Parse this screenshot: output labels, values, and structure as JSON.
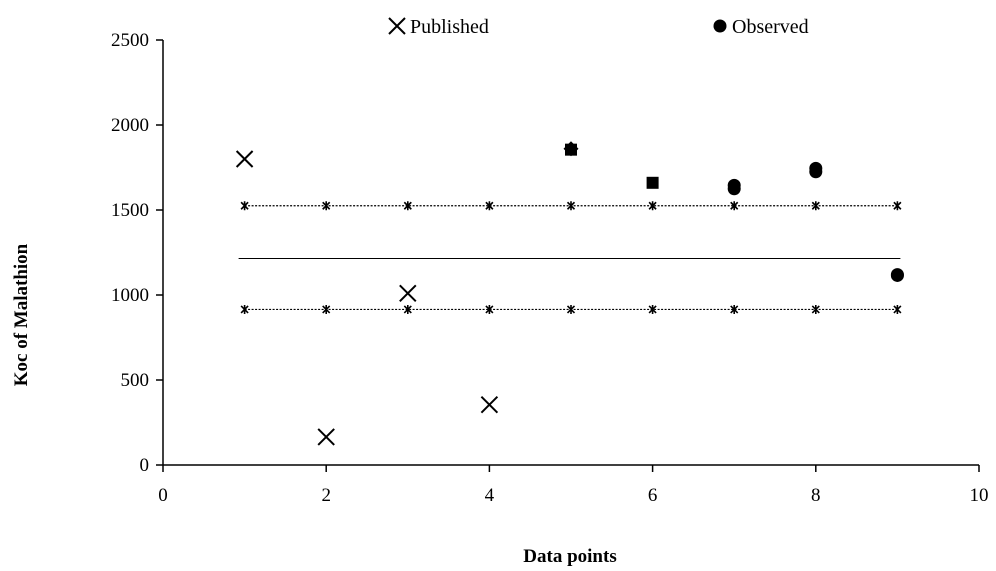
{
  "chart_data": {
    "type": "scatter",
    "xlabel": "Data points",
    "ylabel": "Koc of Malathion",
    "xlim": [
      0,
      10
    ],
    "ylim": [
      0,
      2500
    ],
    "x_ticks": [
      "0",
      "2",
      "4",
      "6",
      "8",
      "10"
    ],
    "y_ticks": [
      "0",
      "500",
      "1000",
      "1500",
      "2000",
      "2500"
    ],
    "legend": {
      "placement": "top",
      "entries": [
        "Published",
        "Observed"
      ]
    },
    "series": [
      {
        "name": "Published",
        "marker": "x",
        "color": "#000000",
        "points": [
          {
            "x": 1,
            "y": 1800
          },
          {
            "x": 2,
            "y": 165
          },
          {
            "x": 3,
            "y": 1010
          },
          {
            "x": 4,
            "y": 355
          }
        ]
      },
      {
        "name": "Observed",
        "marker": "mixed",
        "color": "#000000",
        "points": [
          {
            "x": 5,
            "y": 1860,
            "marker": "diamond"
          },
          {
            "x": 5,
            "y": 1855,
            "marker": "square"
          },
          {
            "x": 6,
            "y": 1660,
            "marker": "square"
          },
          {
            "x": 7,
            "y": 1645,
            "marker": "circle"
          },
          {
            "x": 7,
            "y": 1625,
            "marker": "circle"
          },
          {
            "x": 8,
            "y": 1745,
            "marker": "circle"
          },
          {
            "x": 8,
            "y": 1725,
            "marker": "circle"
          },
          {
            "x": 9,
            "y": 1120,
            "marker": "circle"
          },
          {
            "x": 9,
            "y": 1115,
            "marker": "circle"
          }
        ]
      }
    ],
    "reference_lines": [
      {
        "id": "upper-limit",
        "y": 1525,
        "x_from": 1,
        "x_to": 9,
        "style": "dotted-with-markers"
      },
      {
        "id": "mean",
        "y": 1215,
        "x_from": 1,
        "x_to": 9,
        "style": "solid"
      },
      {
        "id": "lower-limit",
        "y": 915,
        "x_from": 1,
        "x_to": 9,
        "style": "dotted-with-markers"
      }
    ],
    "marker_x_positions": [
      1,
      2,
      3,
      4,
      5,
      6,
      7,
      8,
      9
    ]
  }
}
